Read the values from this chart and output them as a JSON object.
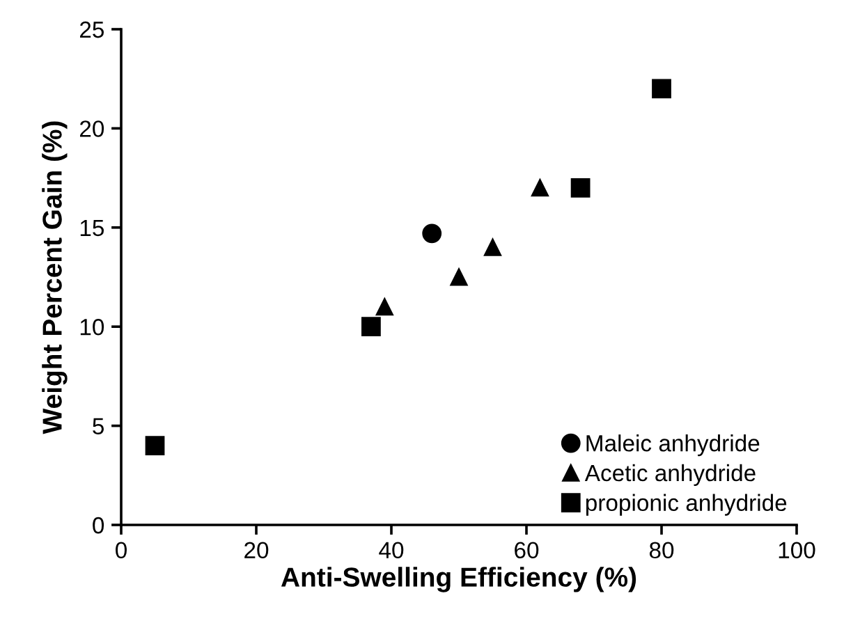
{
  "chart_data": {
    "type": "scatter",
    "xlabel": "Anti-Swelling Efficiency (%)",
    "ylabel": "Weight Percent Gain (%)",
    "xlim": [
      0,
      100
    ],
    "xticks": [
      0,
      20,
      40,
      60,
      80,
      100
    ],
    "ylim": [
      0,
      25
    ],
    "yticks": [
      0,
      5,
      10,
      15,
      20,
      25
    ],
    "grid": false,
    "legend": "bottom right",
    "series": [
      {
        "name": "Maleic anhydride",
        "color": "#000000",
        "marker": "circle",
        "x": [
          46
        ],
        "values": [
          14.7
        ]
      },
      {
        "name": "Acetic anhydride",
        "color": "#000000",
        "marker": "triangle",
        "x": [
          39,
          50,
          55,
          62
        ],
        "values": [
          11,
          12.5,
          14,
          17
        ]
      },
      {
        "name": "propionic anhydride",
        "color": "#000000",
        "marker": "square",
        "x": [
          5,
          37,
          68,
          80
        ],
        "values": [
          4,
          10,
          17,
          22
        ]
      }
    ]
  }
}
